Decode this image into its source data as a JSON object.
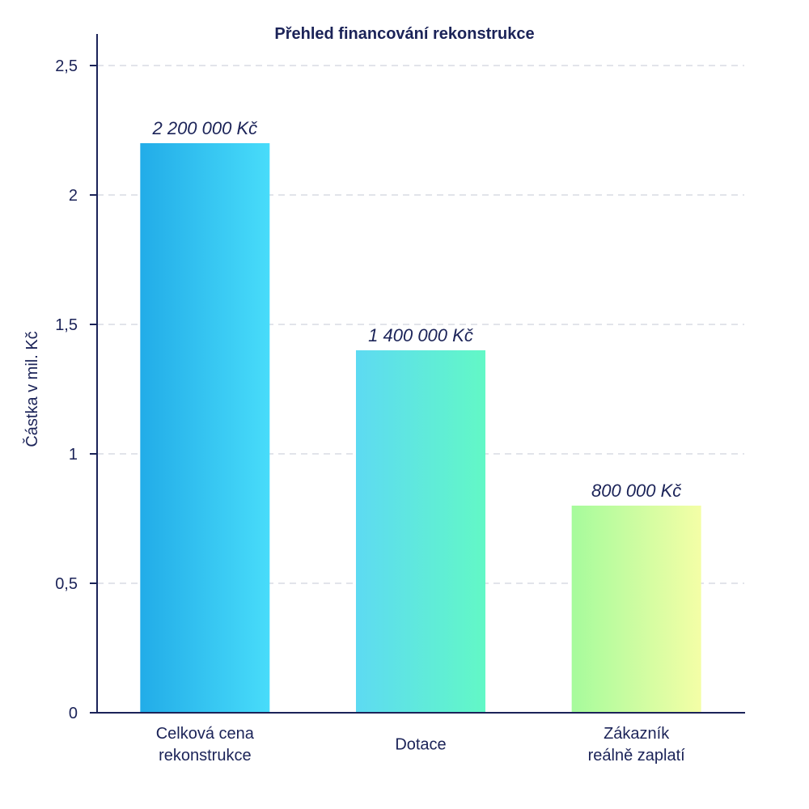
{
  "chart_data": {
    "type": "bar",
    "title": "Přehled financování rekonstrukce",
    "xlabel": "",
    "ylabel": "Částka v mil. Kč",
    "ylim": [
      0,
      2.5
    ],
    "yticks": [
      {
        "value": 0,
        "label": "0"
      },
      {
        "value": 0.5,
        "label": "0,5"
      },
      {
        "value": 1,
        "label": "1"
      },
      {
        "value": 1.5,
        "label": "1,5"
      },
      {
        "value": 2,
        "label": "2"
      },
      {
        "value": 2.5,
        "label": "2,5"
      }
    ],
    "grid": true,
    "categories": [
      {
        "lines": [
          "Celková cena",
          "rekonstrukce"
        ]
      },
      {
        "lines": [
          "Dotace"
        ]
      },
      {
        "lines": [
          "Zákazník",
          "reálně zaplatí"
        ]
      }
    ],
    "values": [
      2.2,
      1.4,
      0.8
    ],
    "data_labels": [
      "2 200 000 Kč",
      "1 400 000 Kč",
      "800 000 Kč"
    ],
    "bar_gradients": [
      [
        "#22ace8",
        "#48dcfa"
      ],
      [
        "#5ddaf2",
        "#62f8c6"
      ],
      [
        "#a6fb9c",
        "#f4fea6"
      ]
    ]
  }
}
